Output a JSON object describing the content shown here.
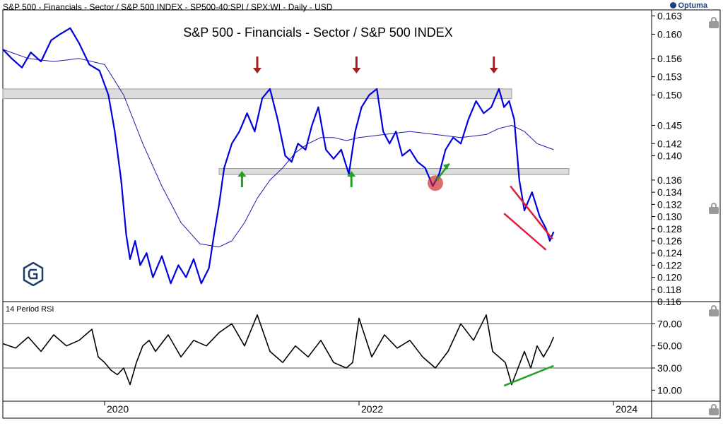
{
  "header": {
    "text": "S&P 500 - Financials - Sector / S&P 500 INDEX - SP500-40:SPI / SPX:WI - Daily - USD",
    "brand": "Optuma"
  },
  "chart_data": [
    {
      "type": "line",
      "title": "S&P 500 - Financials - Sector / S&P 500 INDEX",
      "yticks": [
        "0.116",
        "0.118",
        "0.120",
        "0.122",
        "0.124",
        "0.126",
        "0.128",
        "0.130",
        "0.132",
        "0.134",
        "0.136",
        "0.140",
        "0.142",
        "0.145",
        "0.150",
        "0.153",
        "0.156",
        "0.160",
        "0.163"
      ],
      "ylim": [
        0.116,
        0.164
      ],
      "xlim": [
        2019.2,
        2024.3
      ],
      "series": [
        {
          "role": "price",
          "color": "#0000e0",
          "x": [
            2019.2,
            2019.27,
            2019.35,
            2019.42,
            2019.5,
            2019.58,
            2019.65,
            2019.73,
            2019.8,
            2019.88,
            2019.96,
            2020.03,
            2020.08,
            2020.13,
            2020.17,
            2020.2,
            2020.24,
            2020.28,
            2020.33,
            2020.38,
            2020.45,
            2020.52,
            2020.58,
            2020.64,
            2020.7,
            2020.76,
            2020.82,
            2020.86,
            2020.9,
            2020.94,
            2021.0,
            2021.06,
            2021.12,
            2021.18,
            2021.24,
            2021.3,
            2021.36,
            2021.42,
            2021.47,
            2021.52,
            2021.58,
            2021.63,
            2021.68,
            2021.74,
            2021.8,
            2021.86,
            2021.92,
            2021.97,
            2022.02,
            2022.08,
            2022.14,
            2022.19,
            2022.24,
            2022.29,
            2022.34,
            2022.4,
            2022.46,
            2022.52,
            2022.58,
            2022.63,
            2022.68,
            2022.74,
            2022.8,
            2022.86,
            2022.92,
            2022.98,
            2023.04,
            2023.1,
            2023.14,
            2023.18,
            2023.22,
            2023.26,
            2023.3,
            2023.36,
            2023.42,
            2023.47,
            2023.5,
            2023.53
          ],
          "values": [
            0.1575,
            0.156,
            0.1545,
            0.157,
            0.1555,
            0.159,
            0.16,
            0.161,
            0.1585,
            0.155,
            0.154,
            0.15,
            0.144,
            0.136,
            0.127,
            0.123,
            0.126,
            0.122,
            0.124,
            0.12,
            0.1235,
            0.119,
            0.122,
            0.12,
            0.123,
            0.119,
            0.1215,
            0.127,
            0.132,
            0.138,
            0.142,
            0.144,
            0.147,
            0.144,
            0.1495,
            0.151,
            0.146,
            0.14,
            0.139,
            0.142,
            0.141,
            0.145,
            0.148,
            0.141,
            0.1395,
            0.141,
            0.137,
            0.144,
            0.148,
            0.15,
            0.151,
            0.144,
            0.142,
            0.144,
            0.14,
            0.141,
            0.139,
            0.138,
            0.135,
            0.137,
            0.141,
            0.143,
            0.142,
            0.146,
            0.149,
            0.147,
            0.148,
            0.151,
            0.148,
            0.149,
            0.146,
            0.136,
            0.131,
            0.134,
            0.13,
            0.128,
            0.126,
            0.1275
          ]
        },
        {
          "role": "moving-average",
          "color": "#1a1aa8",
          "x": [
            2019.2,
            2019.4,
            2019.6,
            2019.8,
            2020.0,
            2020.15,
            2020.3,
            2020.45,
            2020.6,
            2020.75,
            2020.9,
            2021.0,
            2021.1,
            2021.2,
            2021.3,
            2021.4,
            2021.5,
            2021.6,
            2021.7,
            2021.8,
            2021.9,
            2022.0,
            2022.2,
            2022.4,
            2022.6,
            2022.8,
            2023.0,
            2023.1,
            2023.2,
            2023.3,
            2023.4,
            2023.53
          ],
          "values": [
            0.1575,
            0.156,
            0.1555,
            0.156,
            0.155,
            0.15,
            0.142,
            0.135,
            0.129,
            0.1255,
            0.125,
            0.126,
            0.129,
            0.133,
            0.136,
            0.138,
            0.1405,
            0.142,
            0.143,
            0.143,
            0.1425,
            0.143,
            0.1435,
            0.144,
            0.1435,
            0.143,
            0.1435,
            0.1445,
            0.145,
            0.144,
            0.142,
            0.141
          ]
        }
      ],
      "zones": [
        {
          "x0": 2019.2,
          "x1": 2023.2,
          "y0": 0.1494,
          "y1": 0.151
        },
        {
          "x0": 2020.9,
          "x1": 2023.65,
          "y0": 0.1369,
          "y1": 0.1379
        }
      ],
      "arrows": [
        {
          "x": 2021.2,
          "direction": "down",
          "color": "#a01f1f"
        },
        {
          "x": 2021.98,
          "direction": "down",
          "color": "#a01f1f"
        },
        {
          "x": 2023.06,
          "direction": "down",
          "color": "#a01f1f"
        },
        {
          "x": 2021.08,
          "direction": "up",
          "color": "#22a022"
        },
        {
          "x": 2021.94,
          "direction": "up",
          "color": "#22a022"
        }
      ],
      "channel": {
        "color": "#e01d3c",
        "upper": [
          {
            "x": 2023.19,
            "y": 0.135
          },
          {
            "x": 2023.52,
            "y": 0.1263
          }
        ],
        "lower": [
          {
            "x": 2023.14,
            "y": 0.1305
          },
          {
            "x": 2023.47,
            "y": 0.1245
          }
        ]
      },
      "breakout": {
        "circle": {
          "x": 2022.6,
          "y": 0.1355,
          "color": "#cc2020"
        },
        "trend": [
          {
            "x": 2022.61,
            "y": 0.136
          },
          {
            "x": 2022.71,
            "y": 0.1387
          }
        ],
        "trend_color": "#22a022"
      }
    },
    {
      "type": "line",
      "name": "14 Period RSI",
      "yticks": [
        "10.00",
        "30.00",
        "50.00",
        "70.00"
      ],
      "ylim": [
        0,
        90
      ],
      "reference_lines": [
        30,
        70
      ],
      "x_ticks": [
        "2020",
        "2022",
        "2024"
      ],
      "x_tick_values": [
        2020.0,
        2022.0,
        2024.0
      ],
      "divergence": [
        {
          "x": 2023.14,
          "y": 14
        },
        {
          "x": 2023.53,
          "y": 32
        }
      ],
      "divergence_color": "#22a022",
      "series": [
        {
          "color": "#000000",
          "x": [
            2019.2,
            2019.3,
            2019.4,
            2019.5,
            2019.6,
            2019.7,
            2019.8,
            2019.9,
            2019.95,
            2020.0,
            2020.05,
            2020.1,
            2020.15,
            2020.2,
            2020.25,
            2020.3,
            2020.35,
            2020.4,
            2020.5,
            2020.6,
            2020.7,
            2020.8,
            2020.9,
            2021.0,
            2021.1,
            2021.2,
            2021.3,
            2021.4,
            2021.5,
            2021.6,
            2021.7,
            2021.8,
            2021.9,
            2021.95,
            2022.0,
            2022.1,
            2022.2,
            2022.3,
            2022.4,
            2022.5,
            2022.6,
            2022.7,
            2022.8,
            2022.9,
            2023.0,
            2023.05,
            2023.1,
            2023.15,
            2023.2,
            2023.25,
            2023.3,
            2023.35,
            2023.4,
            2023.45,
            2023.5,
            2023.53
          ],
          "values": [
            52,
            48,
            58,
            45,
            60,
            50,
            55,
            65,
            40,
            35,
            28,
            24,
            30,
            15,
            35,
            50,
            55,
            45,
            60,
            40,
            55,
            50,
            62,
            70,
            50,
            78,
            45,
            35,
            50,
            40,
            55,
            35,
            30,
            35,
            75,
            40,
            60,
            48,
            55,
            40,
            30,
            45,
            70,
            55,
            78,
            45,
            40,
            35,
            15,
            30,
            45,
            30,
            50,
            40,
            50,
            58
          ]
        }
      ]
    }
  ]
}
